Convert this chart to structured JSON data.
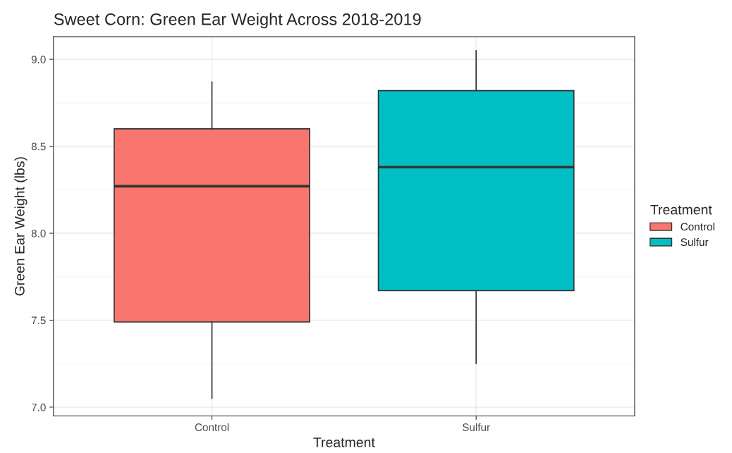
{
  "chart_data": {
    "type": "box",
    "title": "Sweet Corn: Green Ear Weight Across 2018-2019",
    "xlabel": "Treatment",
    "ylabel": "Green Ear Weight (lbs)",
    "legend_title": "Treatment",
    "categories": [
      "Control",
      "Sulfur"
    ],
    "series": [
      {
        "name": "Control",
        "color": "#f8766d",
        "boxes": [
          {
            "low": 7.05,
            "q1": 7.49,
            "median": 8.27,
            "q3": 8.6,
            "high": 8.87
          },
          null
        ]
      },
      {
        "name": "Sulfur",
        "color": "#00bfc4",
        "boxes": [
          null,
          {
            "low": 7.25,
            "q1": 7.67,
            "median": 8.38,
            "q3": 8.82,
            "high": 9.05
          }
        ]
      }
    ],
    "ylim": [
      6.95,
      9.13
    ],
    "yticks": [
      {
        "value": 7,
        "label": "7.0"
      },
      7.5,
      {
        "value": 8,
        "label": "8.0"
      },
      8.5,
      {
        "value": 9,
        "label": "9.0"
      }
    ],
    "grid": true,
    "legend": "right"
  }
}
